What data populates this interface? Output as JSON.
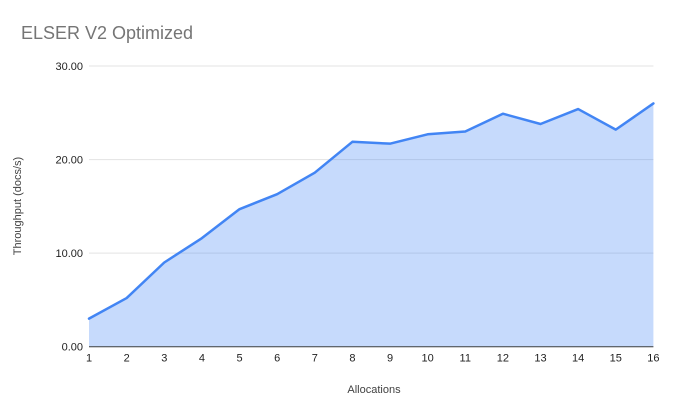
{
  "chart_data": {
    "type": "area",
    "title": "ELSER V2 Optimized",
    "xlabel": "Allocations",
    "ylabel": "Throughput (docs/s)",
    "x": [
      1,
      2,
      3,
      4,
      5,
      6,
      7,
      8,
      9,
      10,
      11,
      12,
      13,
      14,
      15,
      16
    ],
    "series": [
      {
        "name": "Throughput (docs/s)",
        "values": [
          3.0,
          5.2,
          9.0,
          11.6,
          14.7,
          16.3,
          18.6,
          21.9,
          21.7,
          22.7,
          23.0,
          24.9,
          23.8,
          25.4,
          23.2,
          26.0
        ]
      }
    ],
    "ylim": [
      0,
      30
    ],
    "yticks": [
      0,
      10,
      20,
      30
    ],
    "ytick_labels": [
      "0.00",
      "10.00",
      "20.00",
      "30.00"
    ],
    "xtick_labels": [
      "1",
      "2",
      "3",
      "4",
      "5",
      "6",
      "7",
      "8",
      "9",
      "10",
      "11",
      "12",
      "13",
      "14",
      "15",
      "16"
    ],
    "grid": "horizontal",
    "legend": "none",
    "colors": {
      "line": "#4285f4",
      "fill": "#4285f4",
      "fill_opacity": 0.3,
      "title_text": "#757575",
      "axis_text": "#1f1f1f",
      "axis_title_text": "#424242",
      "gridline": "#e3e3e3",
      "baseline": "#424242",
      "background": "#ffffff"
    }
  }
}
